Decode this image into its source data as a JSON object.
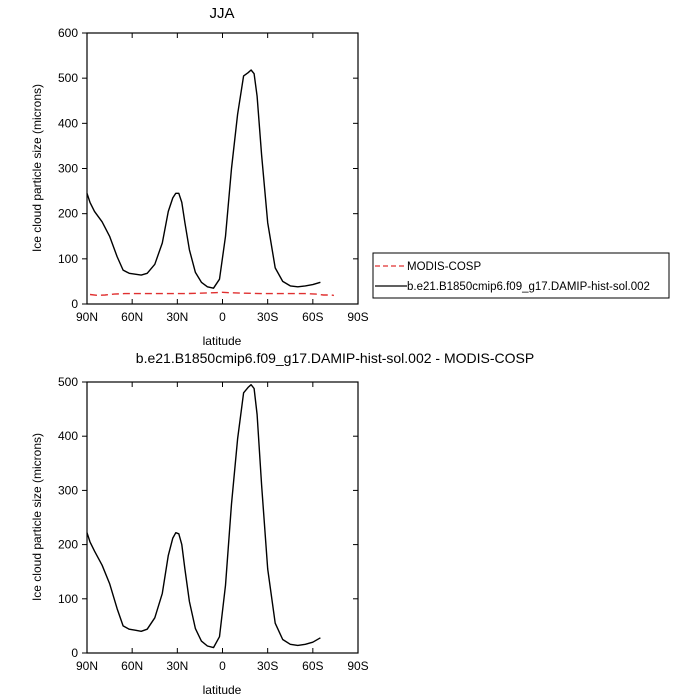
{
  "chart_data": [
    {
      "type": "line",
      "title": "JJA",
      "xlabel": "latitude",
      "ylabel": "Ice cloud particle size (microns)",
      "xlim": [
        90,
        -90
      ],
      "ylim": [
        0,
        600
      ],
      "xticks": [
        {
          "value": 90,
          "label": "90N"
        },
        {
          "value": 60,
          "label": "60N"
        },
        {
          "value": 30,
          "label": "30N"
        },
        {
          "value": 0,
          "label": "0"
        },
        {
          "value": -30,
          "label": "30S"
        },
        {
          "value": -60,
          "label": "60S"
        },
        {
          "value": -90,
          "label": "90S"
        }
      ],
      "yticks": [
        0,
        100,
        200,
        300,
        400,
        500,
        600
      ],
      "grid": false,
      "legend_position": "right",
      "series": [
        {
          "name": "MODIS-COSP",
          "color": "#e03030",
          "dash": "dashed",
          "x": [
            88,
            83,
            78,
            72,
            65,
            55,
            45,
            35,
            25,
            15,
            5,
            0,
            -5,
            -15,
            -25,
            -35,
            -45,
            -55,
            -62,
            -67,
            -72,
            -74
          ],
          "y": [
            21,
            19,
            20,
            22,
            23,
            23,
            23,
            23,
            23,
            24,
            25,
            26,
            25,
            24,
            23,
            23,
            23,
            23,
            22,
            20,
            20,
            19
          ]
        },
        {
          "name": "b.e21.B1850cmip6.f09_g17.DAMIP-hist-sol.002",
          "color": "#000000",
          "dash": "solid",
          "x": [
            90,
            88,
            85,
            80,
            75,
            70,
            66,
            62,
            58,
            54,
            50,
            45,
            40,
            36,
            33,
            31,
            29,
            27,
            25,
            22,
            18,
            14,
            10,
            6,
            2,
            -2,
            -6,
            -10,
            -14,
            -17,
            -19,
            -21,
            -23,
            -26,
            -30,
            -35,
            -40,
            -45,
            -50,
            -55,
            -60,
            -65
          ],
          "y": [
            245,
            225,
            205,
            182,
            150,
            105,
            75,
            68,
            66,
            64,
            68,
            88,
            135,
            205,
            235,
            245,
            245,
            225,
            180,
            120,
            70,
            48,
            38,
            35,
            55,
            150,
            300,
            420,
            505,
            512,
            518,
            510,
            460,
            330,
            180,
            80,
            50,
            40,
            38,
            40,
            43,
            48
          ]
        }
      ]
    },
    {
      "type": "line",
      "title": "b.e21.B1850cmip6.f09_g17.DAMIP-hist-sol.002 - MODIS-COSP",
      "xlabel": "latitude",
      "ylabel": "Ice cloud particle size (microns)",
      "xlim": [
        90,
        -90
      ],
      "ylim": [
        0,
        500
      ],
      "xticks": [
        {
          "value": 90,
          "label": "90N"
        },
        {
          "value": 60,
          "label": "60N"
        },
        {
          "value": 30,
          "label": "30N"
        },
        {
          "value": 0,
          "label": "0"
        },
        {
          "value": -30,
          "label": "30S"
        },
        {
          "value": -60,
          "label": "60S"
        },
        {
          "value": -90,
          "label": "90S"
        }
      ],
      "yticks": [
        0,
        100,
        200,
        300,
        400,
        500
      ],
      "grid": false,
      "series": [
        {
          "color": "#000000",
          "dash": "solid",
          "x": [
            90,
            88,
            85,
            80,
            75,
            70,
            66,
            62,
            58,
            54,
            50,
            45,
            40,
            36,
            33,
            31,
            29,
            27,
            25,
            22,
            18,
            14,
            10,
            6,
            2,
            -2,
            -6,
            -10,
            -14,
            -17,
            -19,
            -21,
            -23,
            -26,
            -30,
            -35,
            -40,
            -45,
            -50,
            -55,
            -60,
            -65
          ],
          "y": [
            222,
            205,
            188,
            162,
            128,
            82,
            50,
            44,
            42,
            40,
            44,
            65,
            110,
            180,
            212,
            222,
            220,
            200,
            155,
            95,
            45,
            22,
            13,
            10,
            30,
            125,
            275,
            395,
            480,
            490,
            495,
            488,
            440,
            310,
            155,
            55,
            25,
            16,
            14,
            16,
            20,
            28
          ]
        }
      ]
    }
  ]
}
